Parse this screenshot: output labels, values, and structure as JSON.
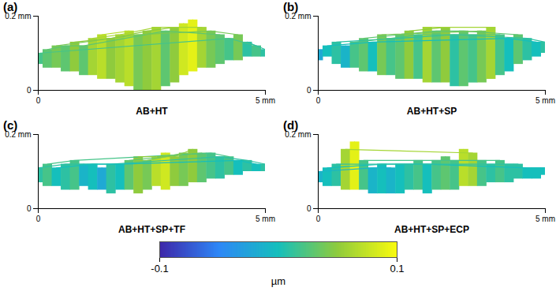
{
  "chart_data": [
    {
      "type": "surface",
      "title": "(a)",
      "xlabel": "AB+HT",
      "xlim": [
        0,
        5
      ],
      "ylim": [
        0,
        0.2
      ],
      "xticks": [
        0,
        {
          "value": 5,
          "label": "5 mm"
        }
      ],
      "yticks": [
        0,
        {
          "value": 0.2,
          "label": "0.2 mm"
        }
      ],
      "x": [
        0,
        0.2,
        0.4,
        0.6,
        0.8,
        1,
        1.2,
        1.4,
        1.6,
        1.8,
        2,
        2.2,
        2.4,
        2.6,
        2.8,
        3,
        3.2,
        3.4,
        3.6,
        3.8,
        4,
        4.2,
        4.4,
        4.6,
        4.8,
        5
      ],
      "top": [
        0.1,
        0.11,
        0.12,
        0.12,
        0.13,
        0.12,
        0.14,
        0.15,
        0.14,
        0.15,
        0.16,
        0.15,
        0.16,
        0.17,
        0.16,
        0.17,
        0.18,
        0.19,
        0.17,
        0.16,
        0.15,
        0.14,
        0.15,
        0.13,
        0.12,
        0.11
      ],
      "bottom": [
        0.07,
        0.06,
        0.06,
        0.05,
        0.05,
        0.04,
        0.04,
        0.03,
        0.03,
        0.02,
        0.01,
        0.0,
        0.0,
        0.0,
        0.01,
        0.02,
        0.04,
        0.05,
        0.06,
        0.06,
        0.07,
        0.08,
        0.08,
        0.09,
        0.09,
        0.09
      ],
      "deviation": [
        0.02,
        0.03,
        0.04,
        0.03,
        0.05,
        0.03,
        0.06,
        0.07,
        0.05,
        0.06,
        0.07,
        0.04,
        0.05,
        0.06,
        0.03,
        0.05,
        0.08,
        0.09,
        0.06,
        0.04,
        0.03,
        0.02,
        0.04,
        0.01,
        0.02,
        0.01
      ]
    },
    {
      "type": "surface",
      "title": "(b)",
      "xlabel": "AB+HT+SP",
      "xlim": [
        0,
        5
      ],
      "ylim": [
        0,
        0.2
      ],
      "xticks": [
        0,
        {
          "value": 5,
          "label": "5 mm"
        }
      ],
      "yticks": [
        0,
        {
          "value": 0.2,
          "label": "0.2 mm"
        }
      ],
      "x": [
        0,
        0.2,
        0.4,
        0.6,
        0.8,
        1,
        1.2,
        1.4,
        1.6,
        1.8,
        2,
        2.2,
        2.4,
        2.6,
        2.8,
        3,
        3.2,
        3.4,
        3.6,
        3.8,
        4,
        4.2,
        4.4,
        4.6,
        4.8,
        5
      ],
      "top": [
        0.11,
        0.12,
        0.13,
        0.12,
        0.13,
        0.14,
        0.13,
        0.15,
        0.14,
        0.15,
        0.16,
        0.15,
        0.17,
        0.16,
        0.17,
        0.15,
        0.16,
        0.15,
        0.16,
        0.17,
        0.15,
        0.14,
        0.15,
        0.14,
        0.13,
        0.13
      ],
      "bottom": [
        0.08,
        0.09,
        0.07,
        0.06,
        0.06,
        0.05,
        0.05,
        0.04,
        0.04,
        0.03,
        0.03,
        0.03,
        0.02,
        0.02,
        0.02,
        0.01,
        0.01,
        0.02,
        0.02,
        0.03,
        0.04,
        0.05,
        0.07,
        0.08,
        0.09,
        0.1
      ],
      "deviation": [
        -0.02,
        0.0,
        0.01,
        -0.01,
        0.02,
        0.03,
        0.0,
        0.04,
        0.02,
        0.03,
        0.05,
        0.02,
        0.06,
        0.03,
        0.05,
        0.01,
        0.03,
        0.02,
        0.04,
        0.06,
        0.02,
        0.0,
        0.03,
        0.01,
        0.0,
        0.01
      ]
    },
    {
      "type": "surface",
      "title": "(c)",
      "xlabel": "AB+HT+SP+TF",
      "xlim": [
        0,
        5
      ],
      "ylim": [
        0,
        0.2
      ],
      "xticks": [
        0,
        {
          "value": 5,
          "label": "5 mm"
        }
      ],
      "yticks": [
        0,
        {
          "value": 0.2,
          "label": "0.2 mm"
        }
      ],
      "x": [
        0,
        0.2,
        0.4,
        0.6,
        0.8,
        1,
        1.2,
        1.4,
        1.6,
        1.8,
        2,
        2.2,
        2.4,
        2.6,
        2.8,
        3,
        3.2,
        3.4,
        3.6,
        3.8,
        4,
        4.2,
        4.4,
        4.6,
        4.8,
        5
      ],
      "top": [
        0.11,
        0.12,
        0.11,
        0.12,
        0.13,
        0.12,
        0.12,
        0.11,
        0.12,
        0.12,
        0.13,
        0.14,
        0.13,
        0.14,
        0.15,
        0.14,
        0.15,
        0.16,
        0.15,
        0.15,
        0.14,
        0.14,
        0.13,
        0.13,
        0.12,
        0.12
      ],
      "bottom": [
        0.07,
        0.06,
        0.06,
        0.05,
        0.05,
        0.06,
        0.05,
        0.05,
        0.04,
        0.05,
        0.05,
        0.04,
        0.05,
        0.06,
        0.05,
        0.06,
        0.06,
        0.07,
        0.07,
        0.08,
        0.08,
        0.09,
        0.09,
        0.1,
        0.1,
        0.1
      ],
      "deviation": [
        0.01,
        0.02,
        0.0,
        0.01,
        0.02,
        -0.01,
        0.0,
        -0.02,
        0.01,
        0.0,
        0.03,
        0.05,
        0.04,
        0.07,
        0.08,
        0.05,
        0.04,
        0.05,
        0.03,
        0.02,
        0.01,
        0.02,
        0.0,
        0.01,
        0.0,
        0.01
      ]
    },
    {
      "type": "surface",
      "title": "(d)",
      "xlabel": "AB+HT+SP+ECP",
      "xlim": [
        0,
        5
      ],
      "ylim": [
        0,
        0.2
      ],
      "xticks": [
        0,
        {
          "value": 5,
          "label": "5 mm"
        }
      ],
      "yticks": [
        0,
        {
          "value": 0.2,
          "label": "0.2 mm"
        }
      ],
      "x": [
        0,
        0.2,
        0.4,
        0.6,
        0.8,
        1,
        1.2,
        1.4,
        1.6,
        1.8,
        2,
        2.2,
        2.4,
        2.6,
        2.8,
        3,
        3.2,
        3.4,
        3.6,
        3.8,
        4,
        4.2,
        4.4,
        4.6,
        4.8,
        5
      ],
      "top": [
        0.1,
        0.11,
        0.12,
        0.16,
        0.18,
        0.13,
        0.11,
        0.12,
        0.11,
        0.12,
        0.12,
        0.13,
        0.12,
        0.13,
        0.14,
        0.13,
        0.16,
        0.15,
        0.13,
        0.12,
        0.13,
        0.12,
        0.12,
        0.11,
        0.11,
        0.11
      ],
      "bottom": [
        0.07,
        0.06,
        0.06,
        0.05,
        0.05,
        0.05,
        0.04,
        0.04,
        0.04,
        0.04,
        0.05,
        0.05,
        0.04,
        0.05,
        0.05,
        0.05,
        0.06,
        0.06,
        0.06,
        0.07,
        0.07,
        0.07,
        0.08,
        0.08,
        0.08,
        0.09
      ],
      "deviation": [
        -0.01,
        0.0,
        0.01,
        0.06,
        0.09,
        0.02,
        -0.01,
        0.0,
        -0.01,
        0.0,
        0.01,
        0.02,
        0.0,
        0.02,
        0.03,
        0.02,
        0.07,
        0.06,
        0.02,
        0.01,
        0.02,
        0.01,
        0.01,
        0.0,
        0.0,
        0.0
      ]
    }
  ],
  "colorbar": {
    "range": [
      -0.1,
      0.1
    ],
    "ticks": [
      -0.1,
      0.1
    ],
    "label": "µm",
    "colors": [
      "#3e26a8",
      "#2e87f7",
      "#15bfbc",
      "#8fcb3d",
      "#f9fb0e"
    ]
  }
}
